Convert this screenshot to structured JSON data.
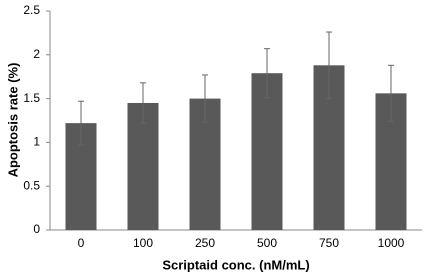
{
  "chart_data": {
    "type": "bar",
    "x_label": "Scriptaid conc. (nM/mL)",
    "y_label": "Apoptosis rate (%)",
    "categories": [
      "0",
      "100",
      "250",
      "500",
      "750",
      "1000"
    ],
    "values": [
      1.22,
      1.45,
      1.5,
      1.79,
      1.88,
      1.56
    ],
    "errors": [
      0.25,
      0.23,
      0.27,
      0.28,
      0.38,
      0.32
    ],
    "color": "#595959",
    "ylim": [
      0,
      2.5
    ],
    "yticks": [
      0,
      0.5,
      1,
      1.5,
      2,
      2.5
    ],
    "grid": false
  }
}
